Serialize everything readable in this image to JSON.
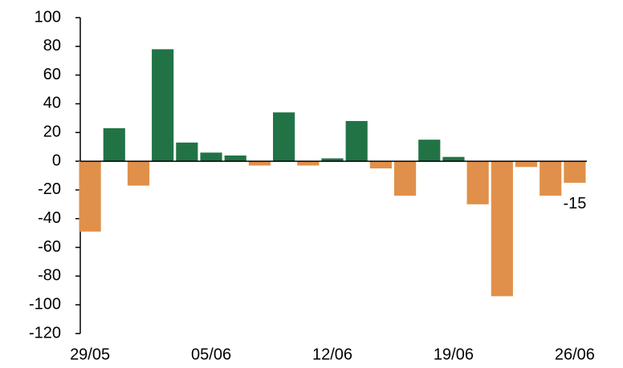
{
  "chart_data": {
    "type": "bar",
    "categories": [
      "29/05",
      null,
      null,
      null,
      null,
      "05/06",
      null,
      null,
      null,
      null,
      "12/06",
      null,
      null,
      null,
      null,
      "19/06",
      null,
      null,
      null,
      null,
      "26/06"
    ],
    "values": [
      -49,
      23,
      -17,
      78,
      13,
      6,
      4,
      -3,
      34,
      -3,
      2,
      28,
      -5,
      -24,
      15,
      3,
      -30,
      -94,
      -4,
      -24,
      -15
    ],
    "labeled_points": [
      20
    ],
    "color_positive": "#217346",
    "color_negative": "#e0904a",
    "ylim": [
      -120,
      100
    ],
    "yticks": [
      -120,
      -100,
      -80,
      -60,
      -40,
      -20,
      0,
      20,
      40,
      60,
      80,
      100
    ]
  }
}
